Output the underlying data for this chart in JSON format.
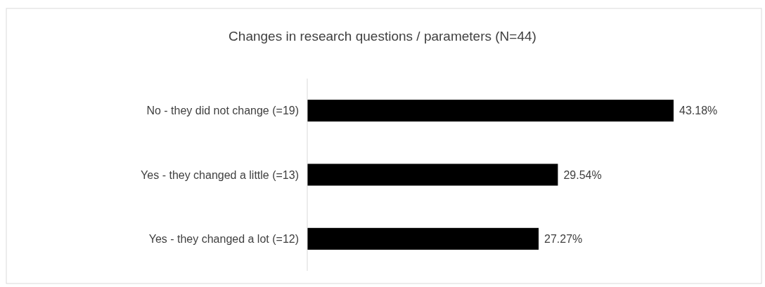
{
  "chart_data": {
    "type": "bar",
    "orientation": "horizontal",
    "title": "Changes in research questions / parameters (N=44)",
    "categories": [
      "No - they did not change (=19)",
      "Yes - they changed a little (=13)",
      "Yes - they changed a lot (=12)"
    ],
    "values": [
      43.18,
      29.54,
      27.27
    ],
    "value_labels": [
      "43.18%",
      "29.54%",
      "27.27%"
    ],
    "color": "#000000"
  }
}
